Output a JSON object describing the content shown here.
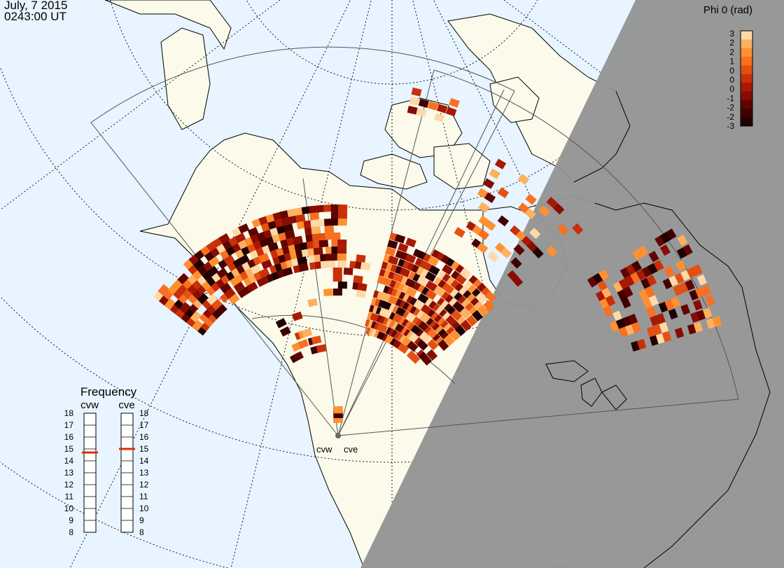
{
  "header": {
    "date": "July, 7 2015",
    "time": "0243:00 UT"
  },
  "colorbar": {
    "title": "Phi 0 (rad)",
    "ticks": [
      "3",
      "2",
      "2",
      "1",
      "0",
      "0",
      "0",
      "-1",
      "-2",
      "-2",
      "-3"
    ],
    "colors": [
      "#ffd9a8",
      "#ffb060",
      "#ff9030",
      "#f87020",
      "#e45010",
      "#c83008",
      "#a81804",
      "#880c02",
      "#600400",
      "#400000",
      "#200000"
    ]
  },
  "radars": {
    "west": "cvw",
    "east": "cve"
  },
  "frequency": {
    "title": "Frequency",
    "ticks": [
      "18",
      "17",
      "16",
      "15",
      "14",
      "13",
      "12",
      "11",
      "10",
      "9",
      "8"
    ],
    "cvw_mhz": 14.7,
    "cve_mhz": 15.0,
    "marker_color": "#d83000"
  },
  "colors": {
    "ocean": "#e8f4ff",
    "land": "#fbfaeb",
    "night": "#949494"
  }
}
